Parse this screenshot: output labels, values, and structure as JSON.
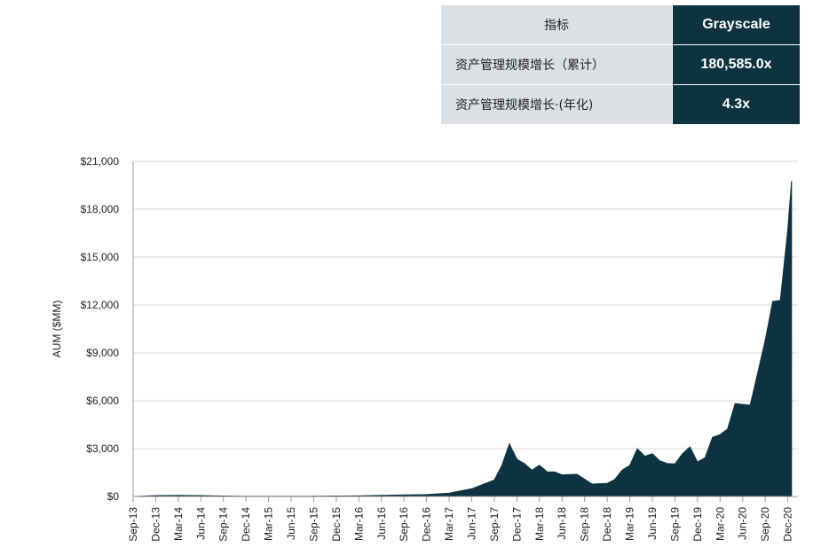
{
  "table": {
    "header": {
      "label": "指标",
      "value": "Grayscale"
    },
    "rows": [
      {
        "label": "资产管理规模增长（累计）",
        "value": "180,585.0x"
      },
      {
        "label": "资产管理规模增长·(年化)",
        "value": "4.3x"
      }
    ]
  },
  "chart_data": {
    "type": "area",
    "title": "",
    "xlabel": "",
    "ylabel": "AUM ($MM)",
    "ylim": [
      0,
      21000
    ],
    "y_ticks": [
      "$21,000",
      "$18,000",
      "$15,000",
      "$12,000",
      "$9,000",
      "$6,000",
      "$3,000",
      "$0"
    ],
    "y_tick_values": [
      21000,
      18000,
      15000,
      12000,
      9000,
      6000,
      3000,
      0
    ],
    "x_ticks": [
      "Sep-13",
      "Dec-13",
      "Mar-14",
      "Jun-14",
      "Sep-14",
      "Dec-14",
      "Mar-15",
      "Jun-15",
      "Sep-15",
      "Dec-15",
      "Mar-16",
      "Jun-16",
      "Sep-16",
      "Dec-16",
      "Mar-17",
      "Jun-17",
      "Sep-17",
      "Dec-17",
      "Mar-18",
      "Jun-18",
      "Sep-18",
      "Dec-18",
      "Mar-19",
      "Jun-19",
      "Sep-19",
      "Dec-19",
      "Mar-20",
      "Jun-20",
      "Sep-20",
      "Dec-20"
    ],
    "grid": true,
    "fill_color": "#0d3340",
    "x": [
      0,
      3,
      6,
      9,
      12,
      15,
      18,
      21,
      24,
      27,
      30,
      33,
      36,
      39,
      42,
      45,
      48,
      49,
      50,
      51,
      52,
      53,
      54,
      55,
      56,
      57,
      59,
      61,
      63,
      64,
      65,
      66,
      67,
      68,
      69,
      70,
      71,
      72,
      73,
      74,
      75,
      76,
      77,
      78,
      79,
      80,
      81,
      82,
      83,
      84,
      85,
      86,
      87,
      87.5
    ],
    "values": [
      1,
      60,
      70,
      60,
      25,
      20,
      15,
      15,
      20,
      30,
      40,
      70,
      90,
      120,
      200,
      500,
      1000,
      2000,
      3200,
      2400,
      2000,
      1700,
      1900,
      1600,
      1500,
      1400,
      1350,
      800,
      800,
      1100,
      1600,
      2000,
      2900,
      2600,
      2600,
      2300,
      2000,
      2100,
      2600,
      3200,
      2100,
      2500,
      3600,
      4000,
      4100,
      6000,
      5600,
      5900,
      7500,
      10000,
      12000,
      12500,
      16500,
      20000
    ]
  }
}
